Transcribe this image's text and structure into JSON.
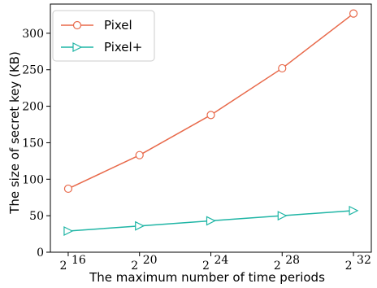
{
  "chart_data": {
    "type": "line",
    "xlabel": "The maximum number of time periods",
    "ylabel": "The size of secret key (KB)",
    "x_tick_labels": [
      {
        "base": "2",
        "exp": "16"
      },
      {
        "base": "2",
        "exp": "20"
      },
      {
        "base": "2",
        "exp": "24"
      },
      {
        "base": "2",
        "exp": "28"
      },
      {
        "base": "2",
        "exp": "32"
      }
    ],
    "x": [
      16,
      20,
      24,
      28,
      32
    ],
    "x_scale": "log2",
    "ylim": [
      0,
      340
    ],
    "yticks": [
      0,
      50,
      100,
      150,
      200,
      250,
      300
    ],
    "grid": false,
    "legend_position": "top-left",
    "series": [
      {
        "name": "Pixel",
        "color": "#e8694a",
        "marker": "circle",
        "values": [
          87,
          133,
          188,
          252,
          327
        ]
      },
      {
        "name": "Pixel+",
        "color": "#1fb5a5",
        "marker": "triangle-right",
        "values": [
          29,
          36,
          43,
          50,
          57
        ]
      }
    ]
  }
}
